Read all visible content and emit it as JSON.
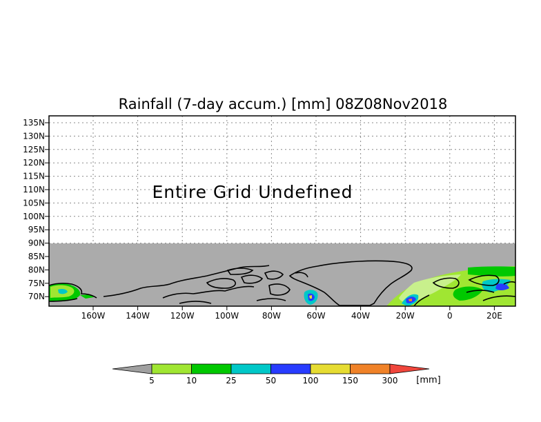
{
  "title": "Rainfall (7-day accum.) [mm] 08Z08Nov2018",
  "message": "Entire Grid Undefined",
  "map": {
    "lat_labels": [
      "135N",
      "130N",
      "125N",
      "120N",
      "115N",
      "110N",
      "105N",
      "100N",
      "95N",
      "90N",
      "85N",
      "80N",
      "75N",
      "70N"
    ],
    "lon_labels": [
      "160W",
      "140W",
      "120W",
      "100W",
      "80W",
      "60W",
      "40W",
      "20W",
      "0",
      "20E"
    ]
  },
  "colorbar": {
    "unit": "[mm]",
    "labels": [
      "5",
      "10",
      "25",
      "50",
      "100",
      "150",
      "300"
    ],
    "colors": [
      "#a0a0a0",
      "#a0e632",
      "#00c800",
      "#00c8c8",
      "#283cff",
      "#e6dc32",
      "#f08228",
      "#f0463c"
    ]
  }
}
